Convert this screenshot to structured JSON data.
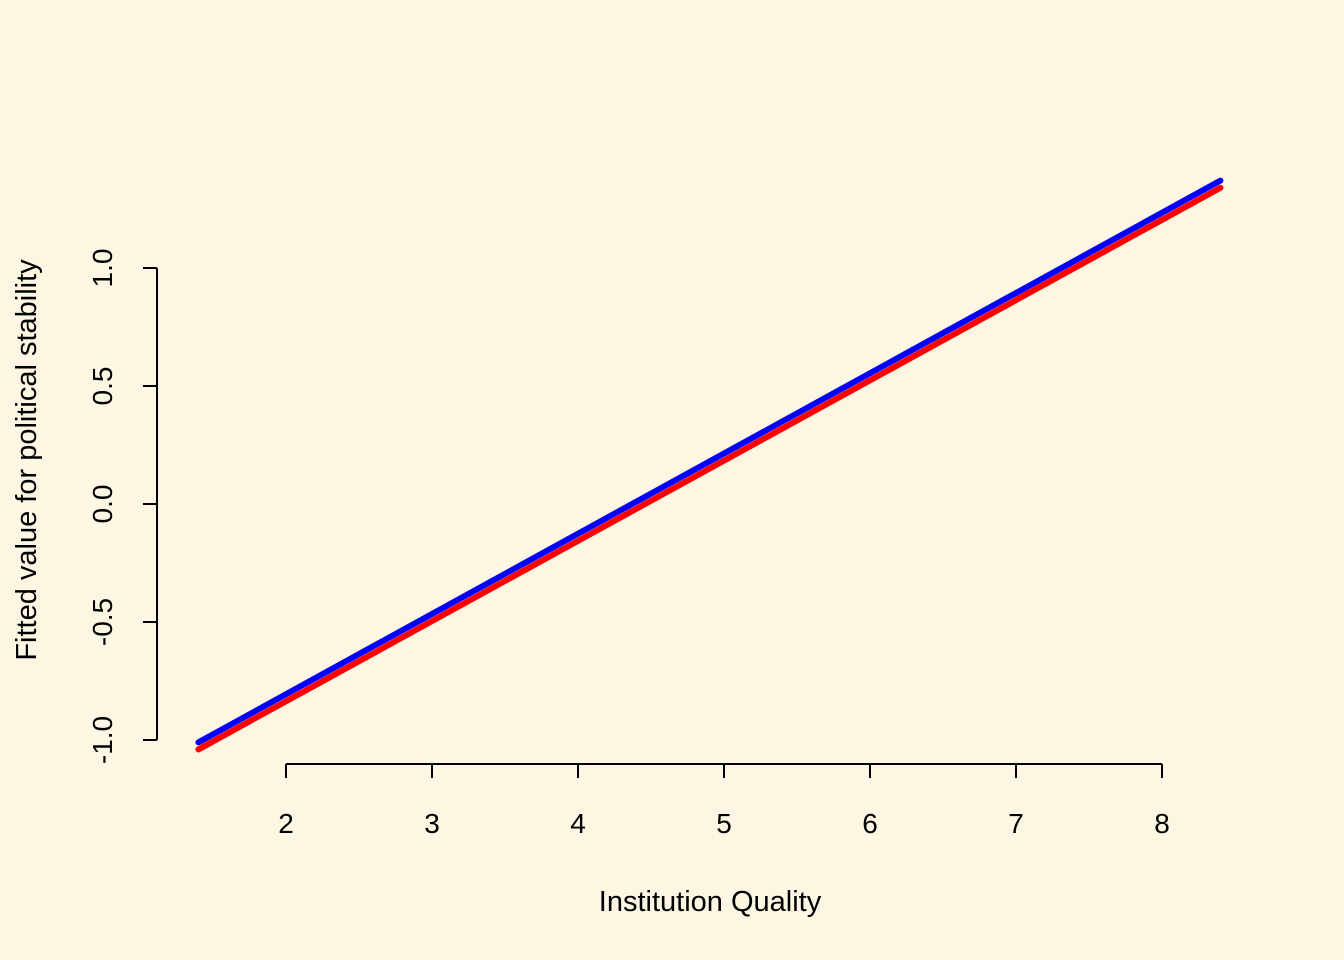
{
  "chart_data": {
    "type": "line",
    "title": "",
    "xlabel": "Institution Quality",
    "ylabel": "Fitted value for political stability",
    "xlim": [
      1.4,
      8.4
    ],
    "ylim": [
      -1.0,
      1.0
    ],
    "x_ticks": [
      2,
      3,
      4,
      5,
      6,
      7,
      8
    ],
    "x_tick_labels": [
      "2",
      "3",
      "4",
      "5",
      "6",
      "7",
      "8"
    ],
    "y_ticks": [
      -1.0,
      -0.5,
      0.0,
      0.5,
      1.0
    ],
    "y_tick_labels": [
      "-1.0",
      "-0.5",
      "0.0",
      "0.5",
      "1.0"
    ],
    "grid": false,
    "legend": "none",
    "series": [
      {
        "color": "#0000ff",
        "x": [
          1.4,
          8.4
        ],
        "y": [
          -1.01,
          1.37
        ]
      },
      {
        "color": "#ff0000",
        "x": [
          1.4,
          8.4
        ],
        "y": [
          -1.04,
          1.34
        ]
      }
    ]
  }
}
